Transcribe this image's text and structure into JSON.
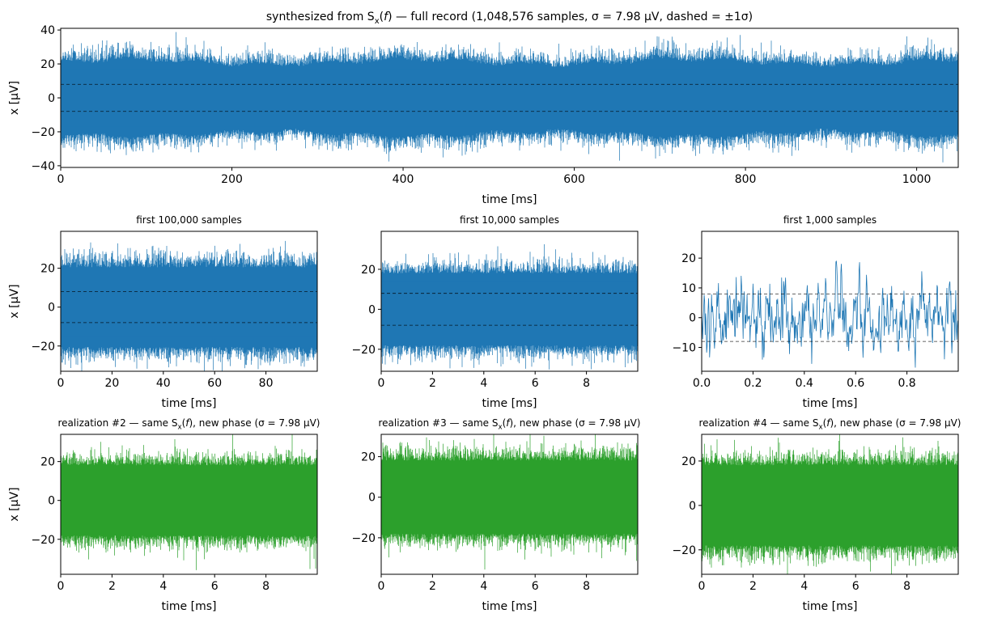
{
  "colors": {
    "blue": "#1f77b4",
    "green": "#2ca02c",
    "sigma_line": "#000000"
  },
  "chart_data": [
    {
      "type": "line",
      "id": "full",
      "title_text": "synthesized from S",
      "title_sub": "x",
      "title_suffix": " — full record (1,048,576 samples, σ = 7.98 μV, dashed = ±1σ)",
      "xlabel": "time [ms]",
      "ylabel": "x  [μV]",
      "xlim": [
        0,
        1048.576
      ],
      "ylim": [
        -41,
        41
      ],
      "xticks": [
        0,
        200,
        400,
        600,
        800,
        1000
      ],
      "xtick_labels": [
        "0",
        "200",
        "400",
        "600",
        "800",
        "1000"
      ],
      "yticks": [
        -40,
        -20,
        0,
        20,
        40
      ],
      "ytick_labels": [
        "−40",
        "−20",
        "0",
        "20",
        "40"
      ],
      "sigma": 7.98,
      "amplitude_envelope": 27,
      "color": "blue"
    },
    {
      "type": "line",
      "id": "first100k",
      "title_text": "first 100,000 samples",
      "xlabel": "time [ms]",
      "ylabel": "x  [μV]",
      "xlim": [
        0,
        100
      ],
      "ylim": [
        -33,
        39
      ],
      "xticks": [
        0,
        20,
        40,
        60,
        80
      ],
      "xtick_labels": [
        "0",
        "20",
        "40",
        "60",
        "80"
      ],
      "yticks": [
        -20,
        0,
        20
      ],
      "ytick_labels": [
        "−20",
        "0",
        "20"
      ],
      "sigma": 7.98,
      "amplitude_envelope": 25,
      "color": "blue"
    },
    {
      "type": "line",
      "id": "first10k",
      "title_text": "first 10,000 samples",
      "xlabel": "time [ms]",
      "ylabel": "",
      "xlim": [
        0,
        10
      ],
      "ylim": [
        -31,
        39
      ],
      "xticks": [
        0,
        2,
        4,
        6,
        8
      ],
      "xtick_labels": [
        "0",
        "2",
        "4",
        "6",
        "8"
      ],
      "yticks": [
        -20,
        0,
        20
      ],
      "ytick_labels": [
        "−20",
        "0",
        "20"
      ],
      "sigma": 7.98,
      "amplitude_envelope": 22,
      "color": "blue"
    },
    {
      "type": "line",
      "id": "first1k",
      "title_text": "first 1,000 samples",
      "xlabel": "time [ms]",
      "ylabel": "",
      "xlim": [
        0,
        1
      ],
      "ylim": [
        -18,
        29
      ],
      "xticks": [
        0,
        0.2,
        0.4,
        0.6,
        0.8
      ],
      "xtick_labels": [
        "0.0",
        "0.2",
        "0.4",
        "0.6",
        "0.8"
      ],
      "yticks": [
        -10,
        0,
        10,
        20
      ],
      "ytick_labels": [
        "−10",
        "0",
        "10",
        "20"
      ],
      "sigma": 7.98,
      "amplitude_envelope": 18,
      "color": "blue"
    },
    {
      "type": "line",
      "id": "real2",
      "title_text": "realization #2 — same S",
      "title_sub": "x",
      "title_suffix": ", new phase (σ = 7.98 μV)",
      "xlabel": "time [ms]",
      "ylabel": "x  [μV]",
      "xlim": [
        0,
        10
      ],
      "ylim": [
        -38,
        34
      ],
      "xticks": [
        0,
        2,
        4,
        6,
        8
      ],
      "xtick_labels": [
        "0",
        "2",
        "4",
        "6",
        "8"
      ],
      "yticks": [
        -20,
        0,
        20
      ],
      "ytick_labels": [
        "−20",
        "0",
        "20"
      ],
      "sigma": 7.98,
      "amplitude_envelope": 22,
      "color": "green"
    },
    {
      "type": "line",
      "id": "real3",
      "title_text": "realization #3 — same S",
      "title_sub": "x",
      "title_suffix": ", new phase (σ = 7.98 μV)",
      "xlabel": "time [ms]",
      "ylabel": "",
      "xlim": [
        0,
        10
      ],
      "ylim": [
        -38,
        31
      ],
      "xticks": [
        0,
        2,
        4,
        6,
        8
      ],
      "xtick_labels": [
        "0",
        "2",
        "4",
        "6",
        "8"
      ],
      "yticks": [
        -20,
        0,
        20
      ],
      "ytick_labels": [
        "−20",
        "0",
        "20"
      ],
      "sigma": 7.98,
      "amplitude_envelope": 22,
      "color": "green"
    },
    {
      "type": "line",
      "id": "real4",
      "title_text": "realization #4 — same S",
      "title_sub": "x",
      "title_suffix": ", new phase (σ = 7.98 μV)",
      "xlabel": "time [ms]",
      "ylabel": "",
      "xlim": [
        0,
        10
      ],
      "ylim": [
        -31,
        32
      ],
      "xticks": [
        0,
        2,
        4,
        6,
        8
      ],
      "xtick_labels": [
        "0",
        "2",
        "4",
        "6",
        "8"
      ],
      "yticks": [
        -20,
        0,
        20
      ],
      "ytick_labels": [
        "−20",
        "0",
        "20"
      ],
      "sigma": 7.98,
      "amplitude_envelope": 22,
      "color": "green"
    }
  ]
}
